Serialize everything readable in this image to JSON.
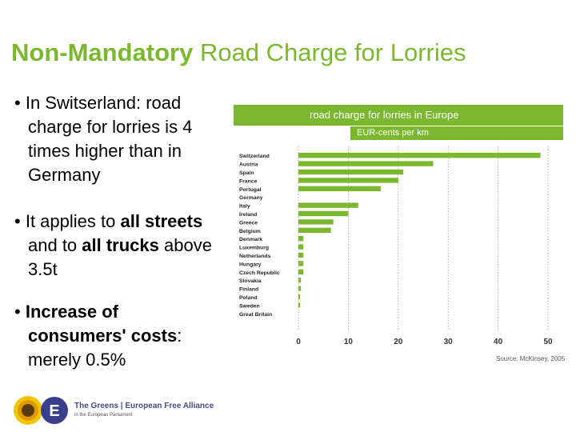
{
  "slide": {
    "title_bold": "Non-Mandatory",
    "title_rest": " Road Charge for Lorries"
  },
  "bullets": {
    "b1": {
      "line1": "In Switserland: road",
      "line2": "charge for lorries is 4",
      "line3": "times higher than in",
      "line4": "Germany"
    },
    "b2": {
      "line1_pre": "It applies to ",
      "line1_bold": "all streets",
      "line2_pre": "and to ",
      "line2_bold": "all trucks",
      "line2_post": " above",
      "line3": "3.5t"
    },
    "b3": {
      "line1": "Increase of",
      "line2_bold": "consumers' costs",
      "line2_post": ":",
      "line3": "merely 0.5%"
    }
  },
  "chart_data": {
    "type": "bar",
    "orientation": "horizontal",
    "title": "road charge for lorries in Europe",
    "subtitle": "EUR-cents per km",
    "categories": [
      "Switzerland",
      "Austria",
      "Spain",
      "France",
      "Portugal",
      "Germany",
      "Italy",
      "Ireland",
      "Greece",
      "Belgium",
      "Denmark",
      "Luxemburg",
      "Netherlands",
      "Hungary",
      "Czech Republic",
      "Slovakia",
      "Finland",
      "Poland",
      "Sweden",
      "Great Britain"
    ],
    "values": [
      48.5,
      27,
      21,
      20,
      16.5,
      null,
      12,
      10,
      7,
      6.5,
      1,
      1,
      1,
      1,
      1,
      0.5,
      0.5,
      0.3,
      0.2,
      null
    ],
    "xlim": [
      0,
      50
    ],
    "xticks": [
      "0",
      "10",
      "20",
      "30",
      "40",
      "50"
    ],
    "grid": true,
    "bar_color": "#7cb82f",
    "source": "Source: McKinsey, 2005"
  },
  "footer": {
    "org_name": "The Greens | European Free Alliance",
    "org_sub": "in the European Parliament",
    "logo_letter": "E"
  }
}
